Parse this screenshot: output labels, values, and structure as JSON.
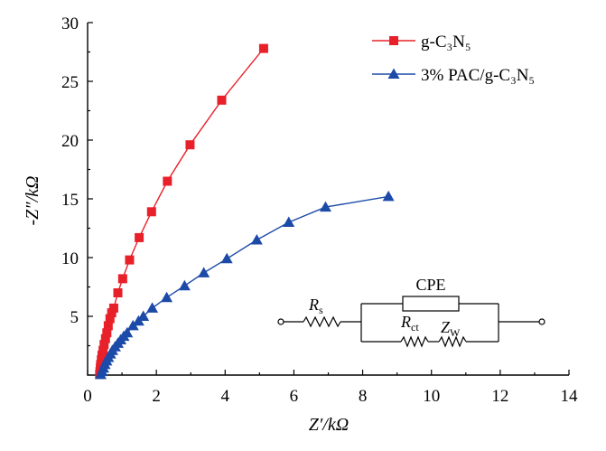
{
  "chart_data": {
    "type": "scatter",
    "xlabel": "Z′/kΩ",
    "ylabel": "-Z″/kΩ",
    "xlim": [
      0,
      14
    ],
    "ylim": [
      0,
      30
    ],
    "xticks": [
      0,
      2,
      4,
      6,
      8,
      10,
      12,
      14
    ],
    "yticks": [
      5,
      10,
      15,
      20,
      25,
      30
    ],
    "grid": false,
    "legend_position": "top-right",
    "series": [
      {
        "name": "g-C₃N₅",
        "color": "#e8202a",
        "marker": "square",
        "points": [
          [
            0.35,
            0.05
          ],
          [
            0.36,
            0.3
          ],
          [
            0.37,
            0.6
          ],
          [
            0.38,
            0.9
          ],
          [
            0.4,
            1.3
          ],
          [
            0.42,
            1.7
          ],
          [
            0.45,
            2.1
          ],
          [
            0.48,
            2.6
          ],
          [
            0.52,
            3.1
          ],
          [
            0.56,
            3.6
          ],
          [
            0.6,
            4.2
          ],
          [
            0.65,
            4.8
          ],
          [
            0.7,
            5.3
          ],
          [
            0.76,
            5.7
          ],
          [
            0.88,
            7.0
          ],
          [
            1.02,
            8.2
          ],
          [
            1.22,
            9.8
          ],
          [
            1.5,
            11.7
          ],
          [
            1.86,
            13.9
          ],
          [
            2.32,
            16.5
          ],
          [
            2.98,
            19.6
          ],
          [
            3.9,
            23.4
          ],
          [
            5.12,
            27.8
          ]
        ]
      },
      {
        "name": "3% PAC/g-C₃N₅",
        "color": "#1c4aa8",
        "marker": "triangle",
        "points": [
          [
            0.38,
            0.05
          ],
          [
            0.42,
            0.3
          ],
          [
            0.46,
            0.6
          ],
          [
            0.5,
            0.9
          ],
          [
            0.55,
            1.2
          ],
          [
            0.6,
            1.5
          ],
          [
            0.66,
            1.8
          ],
          [
            0.72,
            2.1
          ],
          [
            0.8,
            2.4
          ],
          [
            0.88,
            2.7
          ],
          [
            0.96,
            3.0
          ],
          [
            1.05,
            3.3
          ],
          [
            1.15,
            3.6
          ],
          [
            1.32,
            4.2
          ],
          [
            1.48,
            4.6
          ],
          [
            1.62,
            5.0
          ],
          [
            1.88,
            5.7
          ],
          [
            2.3,
            6.6
          ],
          [
            2.82,
            7.6
          ],
          [
            3.38,
            8.7
          ],
          [
            4.05,
            9.9
          ],
          [
            4.92,
            11.5
          ],
          [
            5.85,
            13.0
          ],
          [
            6.92,
            14.3
          ],
          [
            8.75,
            15.2
          ]
        ]
      }
    ]
  },
  "circuit": {
    "label_rs": "R",
    "label_rs_sub": "s",
    "label_cpe": "CPE",
    "label_rct": "R",
    "label_rct_sub": "ct",
    "label_zw": "Z",
    "label_zw_sub": "W"
  }
}
